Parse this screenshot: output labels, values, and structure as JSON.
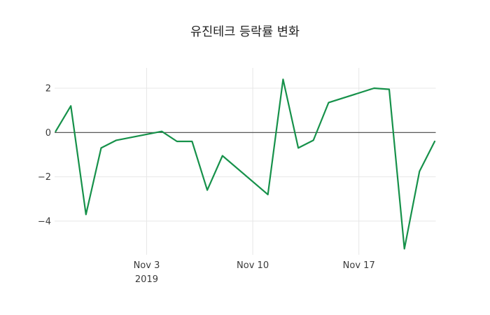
{
  "chart_data": {
    "type": "line",
    "title": "유진테크 등락률 변화",
    "xlabel": "",
    "ylabel": "",
    "ylim": [
      -5.6,
      2.9
    ],
    "grid": true,
    "legend": "none",
    "line_color": "#16914a",
    "grid_color": "#e7e7e7",
    "zero_line_color": "#424242",
    "tick_text_color": "#3a3a3a",
    "y_ticks": [
      {
        "value": 2,
        "label": "2"
      },
      {
        "value": 0,
        "label": "0"
      },
      {
        "value": -2,
        "label": "−2"
      },
      {
        "value": -4,
        "label": "−4"
      }
    ],
    "x_ticks": [
      {
        "day": 6,
        "label": "Nov 3",
        "sublabel": "2019"
      },
      {
        "day": 13,
        "label": "Nov 10",
        "sublabel": ""
      },
      {
        "day": 20,
        "label": "Nov 17",
        "sublabel": ""
      }
    ],
    "series": [
      {
        "name": "등락률",
        "points": [
          {
            "date": "Oct 28",
            "day": 0,
            "value": 0.05
          },
          {
            "date": "Oct 29",
            "day": 1,
            "value": 1.2
          },
          {
            "date": "Oct 30",
            "day": 2,
            "value": -3.7
          },
          {
            "date": "Oct 31",
            "day": 3,
            "value": -0.7
          },
          {
            "date": "Nov 1",
            "day": 4,
            "value": -0.35
          },
          {
            "date": "Nov 4",
            "day": 7,
            "value": 0.05
          },
          {
            "date": "Nov 5",
            "day": 8,
            "value": -0.4
          },
          {
            "date": "Nov 6",
            "day": 9,
            "value": -0.4
          },
          {
            "date": "Nov 7",
            "day": 10,
            "value": -2.6
          },
          {
            "date": "Nov 8",
            "day": 11,
            "value": -1.05
          },
          {
            "date": "Nov 11",
            "day": 14,
            "value": -2.8
          },
          {
            "date": "Nov 12",
            "day": 15,
            "value": 2.4
          },
          {
            "date": "Nov 13",
            "day": 16,
            "value": -0.7
          },
          {
            "date": "Nov 14",
            "day": 17,
            "value": -0.35
          },
          {
            "date": "Nov 15",
            "day": 18,
            "value": 1.35
          },
          {
            "date": "Nov 18",
            "day": 21,
            "value": 2.0
          },
          {
            "date": "Nov 19",
            "day": 22,
            "value": 1.95
          },
          {
            "date": "Nov 20",
            "day": 23,
            "value": -5.25
          },
          {
            "date": "Nov 21",
            "day": 24,
            "value": -1.75
          },
          {
            "date": "Nov 22",
            "day": 25,
            "value": -0.4
          }
        ]
      }
    ]
  }
}
